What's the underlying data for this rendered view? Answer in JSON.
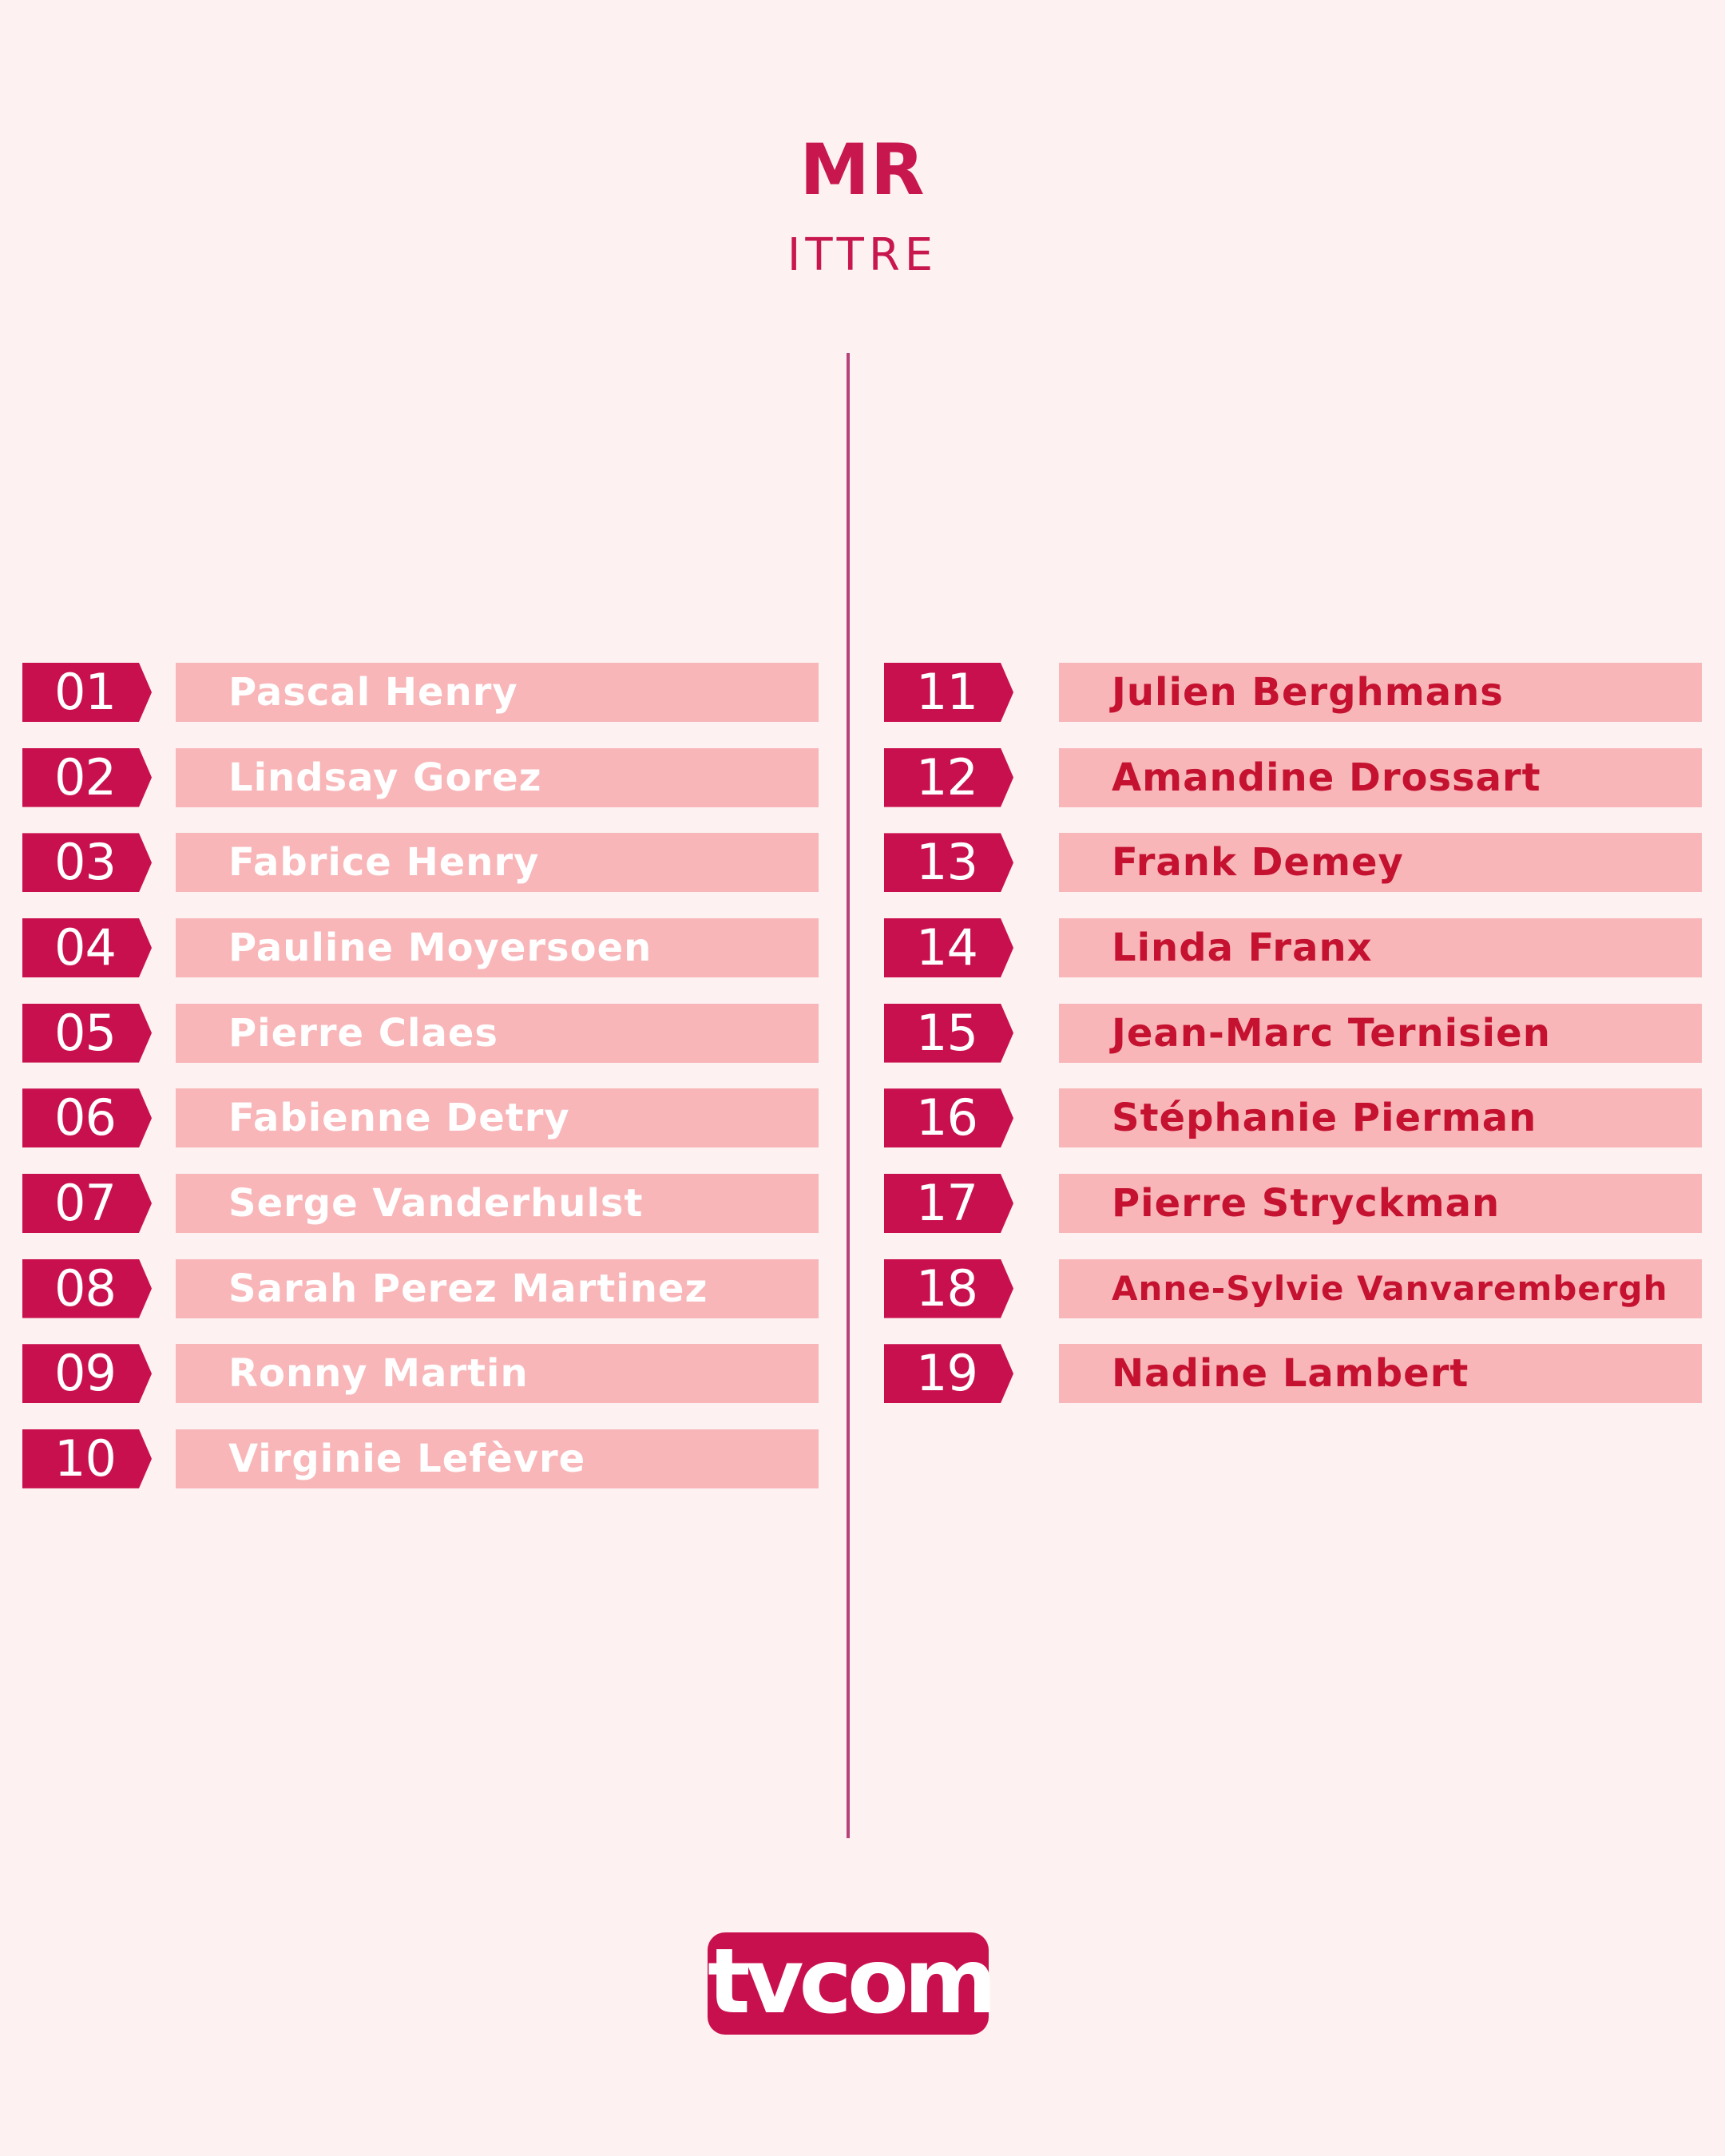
{
  "header": {
    "party": "MR",
    "commune": "ITTRE"
  },
  "candidates": {
    "left": [
      {
        "number": "01",
        "name": "Pascal Henry"
      },
      {
        "number": "02",
        "name": "Lindsay Gorez"
      },
      {
        "number": "03",
        "name": "Fabrice Henry"
      },
      {
        "number": "04",
        "name": "Pauline Moyersoen"
      },
      {
        "number": "05",
        "name": "Pierre Claes"
      },
      {
        "number": "06",
        "name": "Fabienne Detry"
      },
      {
        "number": "07",
        "name": "Serge Vanderhulst"
      },
      {
        "number": "08",
        "name": "Sarah Perez Martinez"
      },
      {
        "number": "09",
        "name": "Ronny Martin"
      },
      {
        "number": "10",
        "name": "Virginie Lefèvre"
      }
    ],
    "right": [
      {
        "number": "11",
        "name": "Julien Berghmans"
      },
      {
        "number": "12",
        "name": "Amandine Drossart"
      },
      {
        "number": "13",
        "name": "Frank Demey"
      },
      {
        "number": "14",
        "name": "Linda Franx"
      },
      {
        "number": "15",
        "name": "Jean-Marc Ternisien"
      },
      {
        "number": "16",
        "name": "Stéphanie Pierman"
      },
      {
        "number": "17",
        "name": "Pierre Stryckman"
      },
      {
        "number": "18",
        "name": "Anne-Sylvie Vanvarembergh"
      },
      {
        "number": "19",
        "name": "Nadine Lambert"
      }
    ]
  },
  "logo": {
    "text": "tvcom"
  },
  "colors": {
    "background": "#fdf1f1",
    "accent": "#c9104e",
    "name_bar": "#f8b6b9",
    "right_name_text": "#c41230",
    "divider": "#b8427a"
  }
}
